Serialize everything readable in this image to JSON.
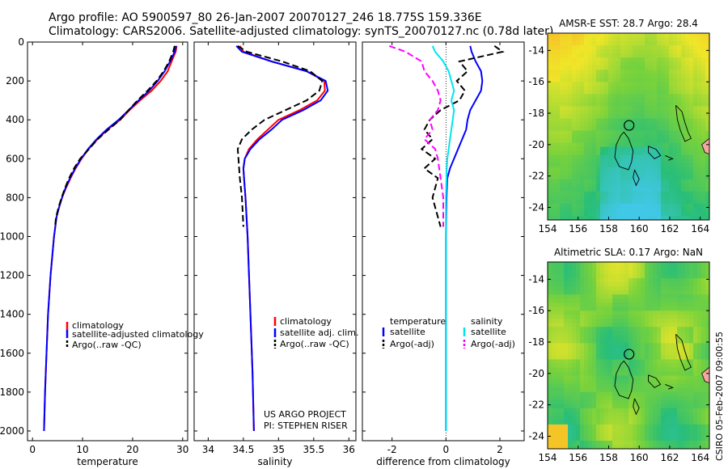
{
  "header": {
    "line1": "Argo profile: AO 5900597_80 26-Jan-2007 20070127_246 18.775S 159.336E",
    "line2": "Climatology: CARS2006. Satellite-adjusted climatology: synTS_20070127.nc (0.78d later)"
  },
  "side_label": "CSIRO 05-Feb-2007 09:00:55",
  "colors": {
    "clim": "#ff0000",
    "sat": "#0000ff",
    "argo": "#000000",
    "sat_salt": "#00e5ee",
    "argo_salt": "#ff00ff"
  },
  "chart_data": [
    {
      "type": "line",
      "name": "temperature-profile",
      "xlabel": "temperature",
      "ylabel": "",
      "xlim": [
        -1,
        31
      ],
      "ylim": [
        2050,
        0
      ],
      "y_reversed": true,
      "xticks": [
        0,
        10,
        20,
        30
      ],
      "yticks": [
        0,
        200,
        400,
        600,
        800,
        1000,
        1200,
        1400,
        1600,
        1800,
        2000
      ],
      "legend": [
        "climatology",
        "satellite-adjusted climatology",
        "Argo(..raw -QC)"
      ],
      "series": [
        {
          "name": "climatology",
          "style": "solid",
          "color_key": "clim",
          "x": [
            28.8,
            28.6,
            27.8,
            27,
            25.6,
            23.8,
            21.5,
            19.4,
            17.5,
            15,
            13,
            11.2,
            9.8,
            8.6,
            7.6,
            6.7,
            5.9,
            5.3,
            4.8,
            4.3,
            3.6,
            3.1,
            2.8,
            2.5,
            2.3
          ],
          "y": [
            20,
            50,
            100,
            150,
            200,
            250,
            300,
            350,
            400,
            450,
            500,
            550,
            600,
            650,
            700,
            750,
            800,
            850,
            900,
            1000,
            1200,
            1400,
            1600,
            1800,
            2000
          ]
        },
        {
          "name": "satellite-adjusted climatology",
          "style": "solid",
          "color_key": "sat",
          "x": [
            28.7,
            28.4,
            27.5,
            26.4,
            25,
            23.3,
            21.2,
            19.2,
            17.2,
            14.8,
            12.8,
            11.1,
            9.7,
            8.5,
            7.5,
            6.6,
            5.9,
            5.3,
            4.8,
            4.3,
            3.6,
            3.1,
            2.8,
            2.5,
            2.3
          ],
          "y": [
            20,
            50,
            100,
            150,
            200,
            250,
            300,
            350,
            400,
            450,
            500,
            550,
            600,
            650,
            700,
            750,
            800,
            850,
            900,
            1000,
            1200,
            1400,
            1600,
            1800,
            2000
          ]
        },
        {
          "name": "Argo(..raw -QC)",
          "style": "dashed",
          "color_key": "argo",
          "x": [
            28.4,
            28.1,
            27.3,
            26.2,
            24.8,
            23,
            21,
            19.2,
            17.5,
            15.2,
            13,
            11.3,
            9.5,
            8.3,
            7.3,
            6.5,
            5.8,
            5.2,
            4.7,
            4.5
          ],
          "y": [
            20,
            50,
            100,
            150,
            200,
            250,
            300,
            350,
            400,
            450,
            500,
            550,
            600,
            650,
            700,
            750,
            800,
            850,
            900,
            950
          ]
        }
      ]
    },
    {
      "type": "line",
      "name": "salinity-profile",
      "xlabel": "salinity",
      "ylabel": "",
      "xlim": [
        33.8,
        36.1
      ],
      "ylim": [
        2050,
        0
      ],
      "y_reversed": true,
      "xticks": [
        34,
        34.5,
        35,
        35.5,
        36
      ],
      "legend": [
        "climatology",
        "satellite adj. clim.",
        "Argo(..raw -QC)"
      ],
      "annotation": [
        "US ARGO PROJECT",
        "PI: STEPHEN RISER"
      ],
      "series": [
        {
          "name": "climatology",
          "style": "solid",
          "color_key": "clim",
          "x": [
            34.45,
            34.5,
            34.9,
            35.4,
            35.65,
            35.66,
            35.55,
            35.3,
            35,
            34.85,
            34.7,
            34.58,
            34.52,
            34.5,
            34.51,
            34.53,
            34.56,
            34.6,
            34.63,
            34.65
          ],
          "y": [
            20,
            50,
            100,
            150,
            200,
            250,
            300,
            350,
            400,
            450,
            500,
            550,
            600,
            650,
            700,
            800,
            1000,
            1400,
            1700,
            2000
          ]
        },
        {
          "name": "satellite adj. clim.",
          "style": "solid",
          "color_key": "sat",
          "x": [
            34.4,
            34.48,
            34.9,
            35.4,
            35.67,
            35.7,
            35.6,
            35.35,
            35.05,
            34.9,
            34.73,
            34.6,
            34.52,
            34.5,
            34.51,
            34.53,
            34.56,
            34.6,
            34.63,
            34.65
          ],
          "y": [
            20,
            50,
            100,
            150,
            200,
            250,
            300,
            350,
            400,
            450,
            500,
            550,
            600,
            650,
            700,
            800,
            1000,
            1400,
            1700,
            2000
          ]
        },
        {
          "name": "Argo(..raw -QC)",
          "style": "dashed",
          "color_key": "argo",
          "x": [
            34.42,
            34.55,
            35.05,
            35.45,
            35.62,
            35.58,
            35.4,
            35.1,
            34.8,
            34.62,
            34.48,
            34.42,
            34.43,
            34.45,
            34.48,
            34.5
          ],
          "y": [
            20,
            50,
            100,
            150,
            200,
            250,
            300,
            350,
            400,
            450,
            500,
            550,
            600,
            700,
            800,
            950
          ]
        }
      ]
    },
    {
      "type": "line",
      "name": "difference-profile",
      "xlabel": "difference from climatology",
      "ylabel": "",
      "xlim": [
        -3.1,
        2.9
      ],
      "ylim": [
        2050,
        0
      ],
      "y_reversed": true,
      "xticks": [
        -2,
        0,
        2
      ],
      "legend_temperature_title": "temperature",
      "legend_salinity_title": "salinity",
      "legend_temperature": [
        "satellite",
        "Argo(-adj)"
      ],
      "legend_salinity": [
        "satellite",
        "Argo(-adj)"
      ],
      "series": [
        {
          "name": "temperature satellite",
          "style": "solid",
          "color_key": "sat",
          "x": [
            0.9,
            0.95,
            1.1,
            1.3,
            1.35,
            1.3,
            1.1,
            0.9,
            0.8,
            0.75,
            0.6,
            0.45,
            0.3,
            0.15,
            0.05,
            0.02,
            0,
            0,
            0,
            0
          ],
          "y": [
            20,
            50,
            100,
            150,
            200,
            250,
            300,
            350,
            400,
            450,
            500,
            550,
            600,
            650,
            700,
            800,
            1000,
            1400,
            1700,
            2000
          ]
        },
        {
          "name": "temperature Argo(-adj)",
          "style": "dashed",
          "color_key": "argo",
          "x": [
            1.8,
            2.1,
            0.5,
            0.8,
            0.4,
            0.7,
            0.5,
            -0.2,
            -0.6,
            -0.8,
            -0.5,
            -0.9,
            -0.4,
            -0.8,
            -0.3,
            -0.5,
            -0.2
          ],
          "y": [
            20,
            50,
            100,
            150,
            200,
            250,
            300,
            350,
            400,
            450,
            500,
            550,
            600,
            650,
            700,
            800,
            950
          ]
        },
        {
          "name": "salinity satellite",
          "style": "solid",
          "color_key": "sat_salt",
          "x": [
            -0.5,
            -0.4,
            -0.1,
            0.1,
            0.2,
            0.3,
            0.2,
            0.3,
            0.25,
            0.2,
            0.15,
            0.1,
            0.05,
            0.03,
            0.02,
            0,
            0,
            0,
            0
          ],
          "y": [
            20,
            50,
            100,
            150,
            200,
            250,
            300,
            350,
            400,
            450,
            500,
            550,
            600,
            650,
            700,
            800,
            1000,
            1400,
            2000
          ]
        },
        {
          "name": "salinity Argo(-adj)",
          "style": "dashed",
          "color_key": "argo_salt",
          "x": [
            -2.1,
            -1.5,
            -0.9,
            -0.8,
            -0.5,
            -0.3,
            -0.2,
            -0.3,
            -0.6,
            -0.5,
            -0.8,
            -0.4,
            -0.3,
            -0.2,
            -0.1,
            -0.1
          ],
          "y": [
            20,
            50,
            100,
            150,
            200,
            250,
            300,
            350,
            400,
            450,
            500,
            550,
            600,
            700,
            800,
            950
          ]
        }
      ]
    },
    {
      "type": "heatmap",
      "name": "sst-map",
      "title": "AMSR-E SST: 28.7 Argo: 28.4",
      "xlim": [
        154,
        164.6
      ],
      "ylim": [
        -24.8,
        -12.9
      ],
      "xticks": [
        154,
        156,
        158,
        160,
        162,
        164
      ],
      "yticks": [
        -14,
        -16,
        -18,
        -20,
        -22,
        -24
      ],
      "argo_position": {
        "lon": 159.336,
        "lat": -18.775
      }
    },
    {
      "type": "heatmap",
      "name": "sla-map",
      "title": "Altimetric SLA: 0.17 Argo: NaN",
      "xlim": [
        154,
        164.6
      ],
      "ylim": [
        -24.8,
        -12.9
      ],
      "xticks": [
        154,
        156,
        158,
        160,
        162,
        164
      ],
      "yticks": [
        -14,
        -16,
        -18,
        -20,
        -22,
        -24
      ],
      "argo_position": {
        "lon": 159.336,
        "lat": -18.775
      }
    }
  ]
}
